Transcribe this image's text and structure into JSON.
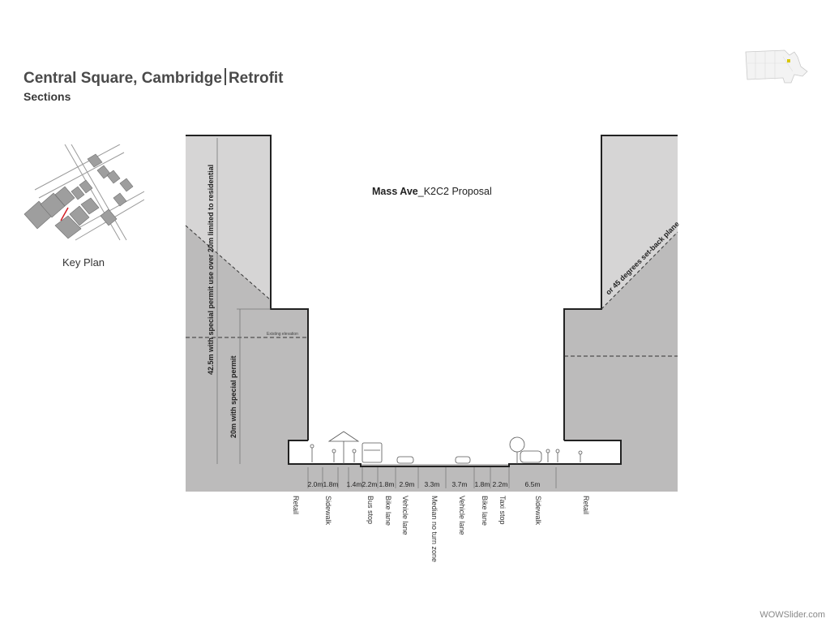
{
  "header": {
    "title_main": "Central Square, Cambridge",
    "title_suffix": "Retrofit",
    "subtitle": "Sections"
  },
  "key_plan": {
    "label": "Key Plan"
  },
  "section": {
    "title_bold": "Mass Ave",
    "title_rest": "_K2C2 Proposal",
    "left_height_label": "42.5m with special permit use over 20m limited to residential",
    "left_lower_label": "20m with special permit",
    "existing_elevation": "Existing elevation",
    "setback_label": "or 45 degrees set-back plane",
    "dimensions": [
      "2.0m",
      "1.8m",
      "1.4m",
      "2.2m",
      "1.8m",
      "2.9m",
      "3.3m",
      "3.7m",
      "1.8m",
      "2.2m",
      "6.5m"
    ],
    "zones": [
      "Retail",
      "Sidewalk",
      "Bus stop",
      "Bike lane",
      "Vehicle lane",
      "Median no turn zone",
      "Vehicle lane",
      "Bike lane",
      "Taxi stop",
      "Sidewalk",
      "Retail"
    ]
  },
  "colors": {
    "building_light": "#d6d5d5",
    "building_dark": "#bcbbbb",
    "outline": "#222222",
    "text": "#3a3a3a"
  },
  "watermark": "WOWSlider.com"
}
